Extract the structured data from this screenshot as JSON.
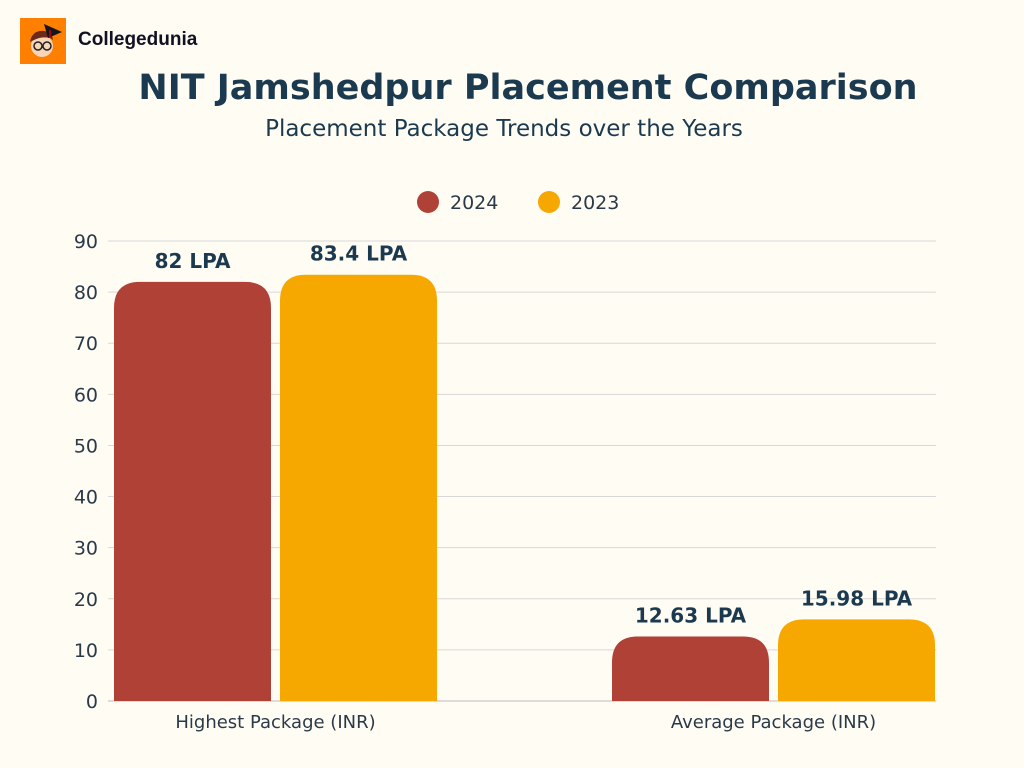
{
  "brand": {
    "name": "Collegedunia",
    "logo_color": "#ff7f00"
  },
  "chart_data": {
    "type": "bar",
    "title": "NIT Jamshedpur Placement Comparison",
    "subtitle": "Placement Package Trends over the Years",
    "categories": [
      "Highest Package (INR)",
      "Average Package (INR)"
    ],
    "series": [
      {
        "name": "2024",
        "values": [
          82,
          12.63
        ],
        "labels": [
          "82 LPA",
          "12.63 LPA"
        ],
        "color": "#b04136"
      },
      {
        "name": "2023",
        "values": [
          83.4,
          15.98
        ],
        "labels": [
          "83.4 LPA",
          "15.98 LPA"
        ],
        "color": "#f6a800"
      }
    ],
    "ylim": [
      0,
      90
    ],
    "yticks": [
      0,
      10,
      20,
      30,
      40,
      50,
      60,
      70,
      80,
      90
    ],
    "grid": true,
    "legend": "top-center"
  }
}
